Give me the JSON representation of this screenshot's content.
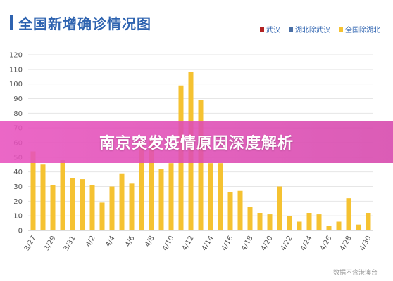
{
  "header": {
    "title": "全国新增确诊情况图"
  },
  "legend": {
    "items": [
      {
        "label": "武汉",
        "color": "#b22222"
      },
      {
        "label": "湖北除武汉",
        "color": "#4a6fa5"
      },
      {
        "label": "全国除湖北",
        "color": "#f5c231"
      }
    ]
  },
  "banner": {
    "text": "南京突发疫情原因深度解析"
  },
  "source": {
    "text": "数据不含港澳台"
  },
  "chart_data": {
    "type": "bar",
    "ylim": [
      0,
      120
    ],
    "yticks": [
      0,
      10,
      20,
      30,
      40,
      50,
      60,
      70,
      80,
      90,
      100,
      110,
      120
    ],
    "grid": true,
    "legend_position": "top-right",
    "categories": [
      "3/27",
      "3/28",
      "3/29",
      "3/30",
      "3/31",
      "4/1",
      "4/2",
      "4/3",
      "4/4",
      "4/5",
      "4/6",
      "4/7",
      "4/8",
      "4/9",
      "4/10",
      "4/11",
      "4/12",
      "4/13",
      "4/14",
      "4/15",
      "4/16",
      "4/17",
      "4/18",
      "4/19",
      "4/20",
      "4/21",
      "4/22",
      "4/23",
      "4/24",
      "4/25",
      "4/26",
      "4/27",
      "4/28",
      "4/29",
      "4/30"
    ],
    "xtick_labels": [
      "3/27",
      "3/29",
      "3/31",
      "4/2",
      "4/4",
      "4/6",
      "4/8",
      "4/10",
      "4/12",
      "4/14",
      "4/16",
      "4/18",
      "4/20",
      "4/22",
      "4/24",
      "4/26",
      "4/28",
      "4/30"
    ],
    "series": [
      {
        "name": "武汉",
        "color": "#b22222",
        "values": [
          0,
          0,
          0,
          0,
          1,
          0,
          0,
          0,
          1,
          0,
          0,
          0,
          0,
          0,
          0,
          0,
          0,
          0,
          0,
          0,
          0,
          0,
          0,
          0,
          0,
          0,
          0,
          0,
          0,
          0,
          0,
          0,
          0,
          0,
          0
        ]
      },
      {
        "name": "湖北除武汉",
        "color": "#4a6fa5",
        "values": [
          0,
          0,
          0,
          0,
          0,
          0,
          0,
          0,
          0,
          0,
          0,
          0,
          0,
          0,
          0,
          0,
          0,
          0,
          0,
          0,
          0,
          0,
          0,
          0,
          0,
          0,
          0,
          0,
          0,
          0,
          0,
          0,
          0,
          0,
          0
        ]
      },
      {
        "name": "全国除湖北",
        "color": "#f5c231",
        "values": [
          54,
          45,
          31,
          48,
          36,
          35,
          31,
          19,
          30,
          39,
          32,
          62,
          62,
          42,
          46,
          99,
          108,
          89,
          46,
          46,
          26,
          27,
          16,
          12,
          11,
          30,
          10,
          6,
          12,
          11,
          3,
          6,
          22,
          4,
          12
        ]
      }
    ]
  }
}
